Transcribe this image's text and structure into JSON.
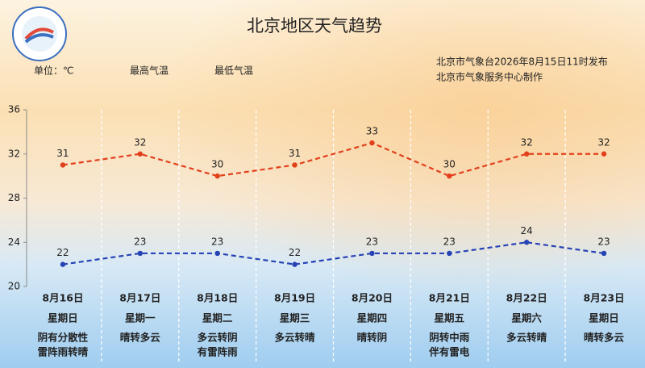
{
  "chart_data": {
    "type": "line",
    "title": "北京地区天气趋势",
    "unit": "单位：℃",
    "issued": [
      "北京市气象台2026年8月15日11时发布",
      "北京市气象服务中心制作"
    ],
    "categories": [
      "8月16日",
      "8月17日",
      "8月18日",
      "8月19日",
      "8月20日",
      "8月21日",
      "8月22日",
      "8月23日"
    ],
    "weekdays": [
      "星期日",
      "星期一",
      "星期二",
      "星期三",
      "星期四",
      "星期五",
      "星期六",
      "星期日"
    ],
    "weather": [
      [
        "阴有分散性",
        "雷阵雨转晴"
      ],
      [
        "晴转多云"
      ],
      [
        "多云转阴",
        "有雷阵雨"
      ],
      [
        "多云转晴"
      ],
      [
        "晴转阴"
      ],
      [
        "阴转中雨",
        "伴有雷电"
      ],
      [
        "多云转晴"
      ],
      [
        "晴转多云"
      ]
    ],
    "series": [
      {
        "name": "最高气温",
        "color": "#e2401c",
        "values": [
          31,
          32,
          30,
          31,
          33,
          30,
          32,
          32
        ]
      },
      {
        "name": "最低气温",
        "color": "#2743b5",
        "values": [
          22,
          23,
          23,
          22,
          23,
          23,
          24,
          23
        ]
      }
    ],
    "ylim": [
      20,
      36
    ],
    "yticks": [
      20,
      24,
      28,
      32,
      36
    ]
  }
}
